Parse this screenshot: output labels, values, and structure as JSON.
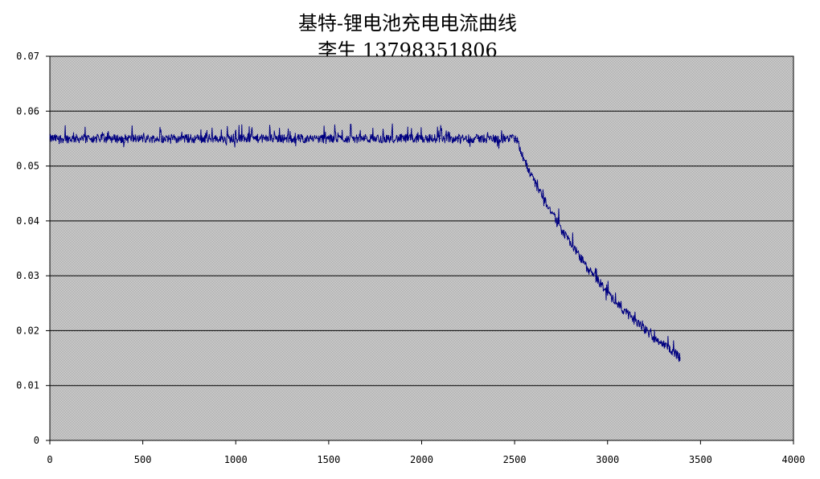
{
  "chart_data": {
    "type": "line",
    "title": "基特-锂电池充电电流曲线",
    "subtitle": "李生 13798351806",
    "xlabel": "",
    "ylabel": "",
    "xlim": [
      0,
      4000
    ],
    "ylim": [
      0,
      0.07
    ],
    "x_ticks": [
      "0",
      "500",
      "1000",
      "1500",
      "2000",
      "2500",
      "3000",
      "3500",
      "4000"
    ],
    "y_ticks": [
      "0",
      "0.01",
      "0.02",
      "0.03",
      "0.04",
      "0.05",
      "0.06",
      "0.07"
    ],
    "grid": "horizontal",
    "legend": "none",
    "plot_background": "#c0c0c0",
    "series": [
      {
        "color": "#000080",
        "x": [
          0,
          100,
          200,
          300,
          400,
          500,
          600,
          700,
          800,
          900,
          1000,
          1100,
          1200,
          1300,
          1400,
          1500,
          1600,
          1700,
          1800,
          1900,
          2000,
          2100,
          2200,
          2300,
          2400,
          2500,
          2510,
          2550,
          2600,
          2650,
          2700,
          2750,
          2800,
          2850,
          2900,
          2950,
          3000,
          3050,
          3100,
          3150,
          3200,
          3250,
          3300,
          3350,
          3390
        ],
        "y": [
          0.055,
          0.055,
          0.055,
          0.055,
          0.055,
          0.055,
          0.055,
          0.055,
          0.055,
          0.055,
          0.055,
          0.055,
          0.055,
          0.055,
          0.055,
          0.055,
          0.055,
          0.055,
          0.055,
          0.055,
          0.055,
          0.055,
          0.055,
          0.055,
          0.055,
          0.055,
          0.055,
          0.051,
          0.0475,
          0.0445,
          0.0415,
          0.0385,
          0.036,
          0.0335,
          0.031,
          0.029,
          0.027,
          0.025,
          0.0233,
          0.0217,
          0.0202,
          0.0188,
          0.0175,
          0.0163,
          0.015
        ]
      }
    ]
  }
}
